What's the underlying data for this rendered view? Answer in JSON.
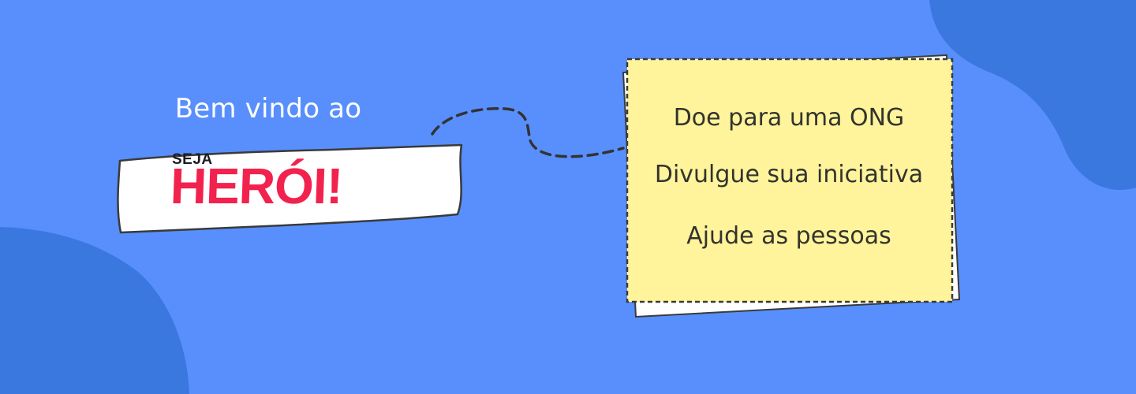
{
  "colors": {
    "background": "#588ffc",
    "blob": "#3a78e0",
    "note": "#fff49b",
    "brand_red": "#f2224e",
    "brand_dark": "#1b1b23"
  },
  "welcome_text": "Bem vindo ao",
  "logo": {
    "small_text": "SEJA",
    "big_text": "HERÓI!"
  },
  "note": {
    "items": [
      "Doe para uma ONG",
      "Divulgue sua iniciativa",
      "Ajude as pessoas"
    ]
  }
}
